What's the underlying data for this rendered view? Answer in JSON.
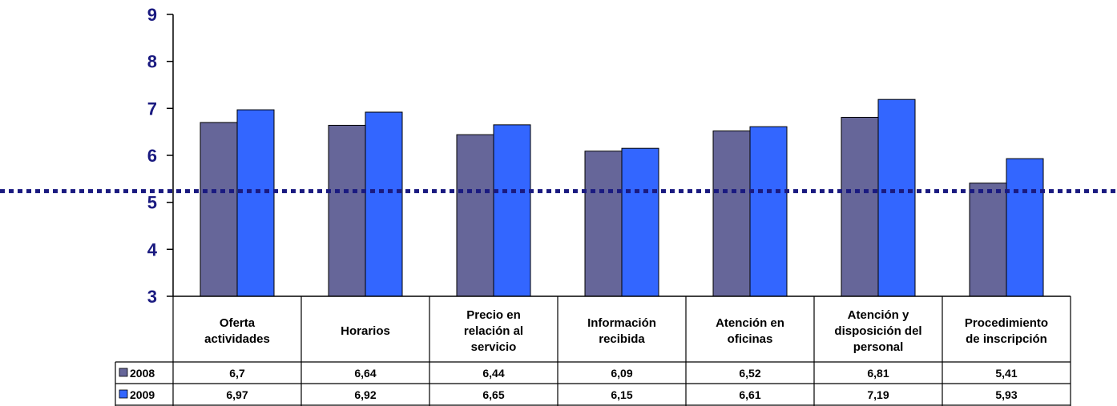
{
  "chart_data": {
    "type": "bar",
    "categories": [
      [
        "Oferta",
        "actividades"
      ],
      [
        "Horarios"
      ],
      [
        "Precio en",
        "relación al",
        "servicio"
      ],
      [
        "Información",
        "recibida"
      ],
      [
        "Atención en",
        "oficinas"
      ],
      [
        "Atención y",
        "disposición del",
        "personal"
      ],
      [
        "Procedimiento",
        "de inscripción"
      ]
    ],
    "series": [
      {
        "name": "2008",
        "color": "#666699",
        "values": [
          6.7,
          6.64,
          6.44,
          6.09,
          6.52,
          6.81,
          5.41
        ],
        "labels": [
          "6,7",
          "6,64",
          "6,44",
          "6,09",
          "6,52",
          "6,81",
          "5,41"
        ]
      },
      {
        "name": "2009",
        "color": "#3366ff",
        "values": [
          6.97,
          6.92,
          6.65,
          6.15,
          6.61,
          7.19,
          5.93
        ],
        "labels": [
          "6,97",
          "6,92",
          "6,65",
          "6,15",
          "6,61",
          "7,19",
          "5,93"
        ]
      }
    ],
    "yticks": [
      "3",
      "4",
      "5",
      "6",
      "7",
      "8",
      "9"
    ],
    "ylim": [
      3,
      9
    ],
    "reference_line": {
      "value": 5.24,
      "color": "#1a1a80",
      "style": "dotted"
    },
    "data_table": true,
    "grid": false,
    "legend": "in-table"
  }
}
